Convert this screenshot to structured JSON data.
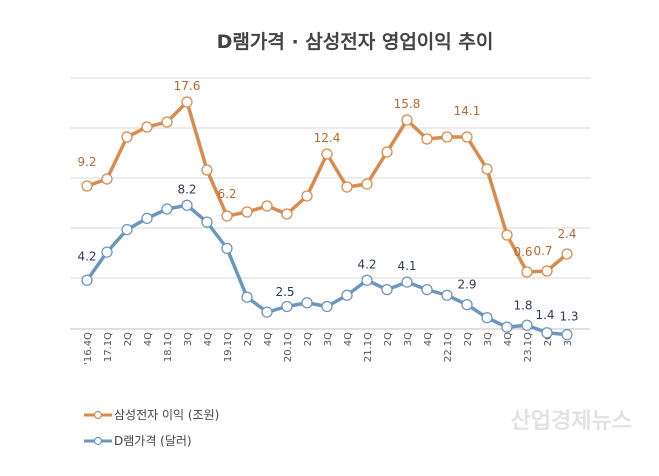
{
  "chart_data": {
    "type": "line",
    "title": "D램가격 · 삼성전자 영업이익 추이",
    "categories": [
      "'16.4Q",
      "17.1Q",
      "2Q",
      "4Q",
      "18.1Q",
      "3Q",
      "4Q",
      "19.1Q",
      "2Q",
      "4Q",
      "20.1Q",
      "2Q",
      "3Q",
      "4Q",
      "21.1Q",
      "2Q",
      "3Q",
      "4Q",
      "22.1Q",
      "2Q",
      "3Q",
      "4Q",
      "23.1Q",
      "2Q",
      "3Q"
    ],
    "series": [
      {
        "name": "삼성전자 이익 (조원)",
        "color": "#d98b4e",
        "values": [
          9.2,
          9.9,
          14.1,
          15.1,
          15.6,
          17.6,
          10.8,
          6.2,
          6.6,
          7.2,
          6.4,
          8.2,
          12.4,
          9.1,
          9.4,
          12.6,
          15.8,
          13.9,
          14.1,
          14.1,
          10.9,
          4.3,
          0.6,
          0.7,
          2.4
        ],
        "labeled_indices": [
          0,
          5,
          7,
          12,
          16,
          19,
          22,
          23,
          24
        ],
        "axis_range": [
          0,
          20
        ]
      },
      {
        "name": "D램가격 (달러)",
        "color": "#6b96c0",
        "values": [
          4.2,
          5.7,
          6.9,
          7.5,
          8.0,
          8.2,
          7.3,
          5.9,
          3.3,
          2.5,
          2.8,
          3.0,
          2.8,
          3.4,
          4.2,
          3.7,
          4.1,
          3.7,
          3.4,
          2.9,
          2.2,
          1.7,
          1.8,
          1.4,
          1.3
        ],
        "labeled_indices": [
          0,
          5,
          9,
          14,
          16,
          19,
          22,
          23,
          24
        ],
        "axis_range": [
          0,
          11
        ]
      }
    ],
    "grid": true,
    "legend_position": "bottom-left"
  },
  "watermark": "산업경제뉴스"
}
